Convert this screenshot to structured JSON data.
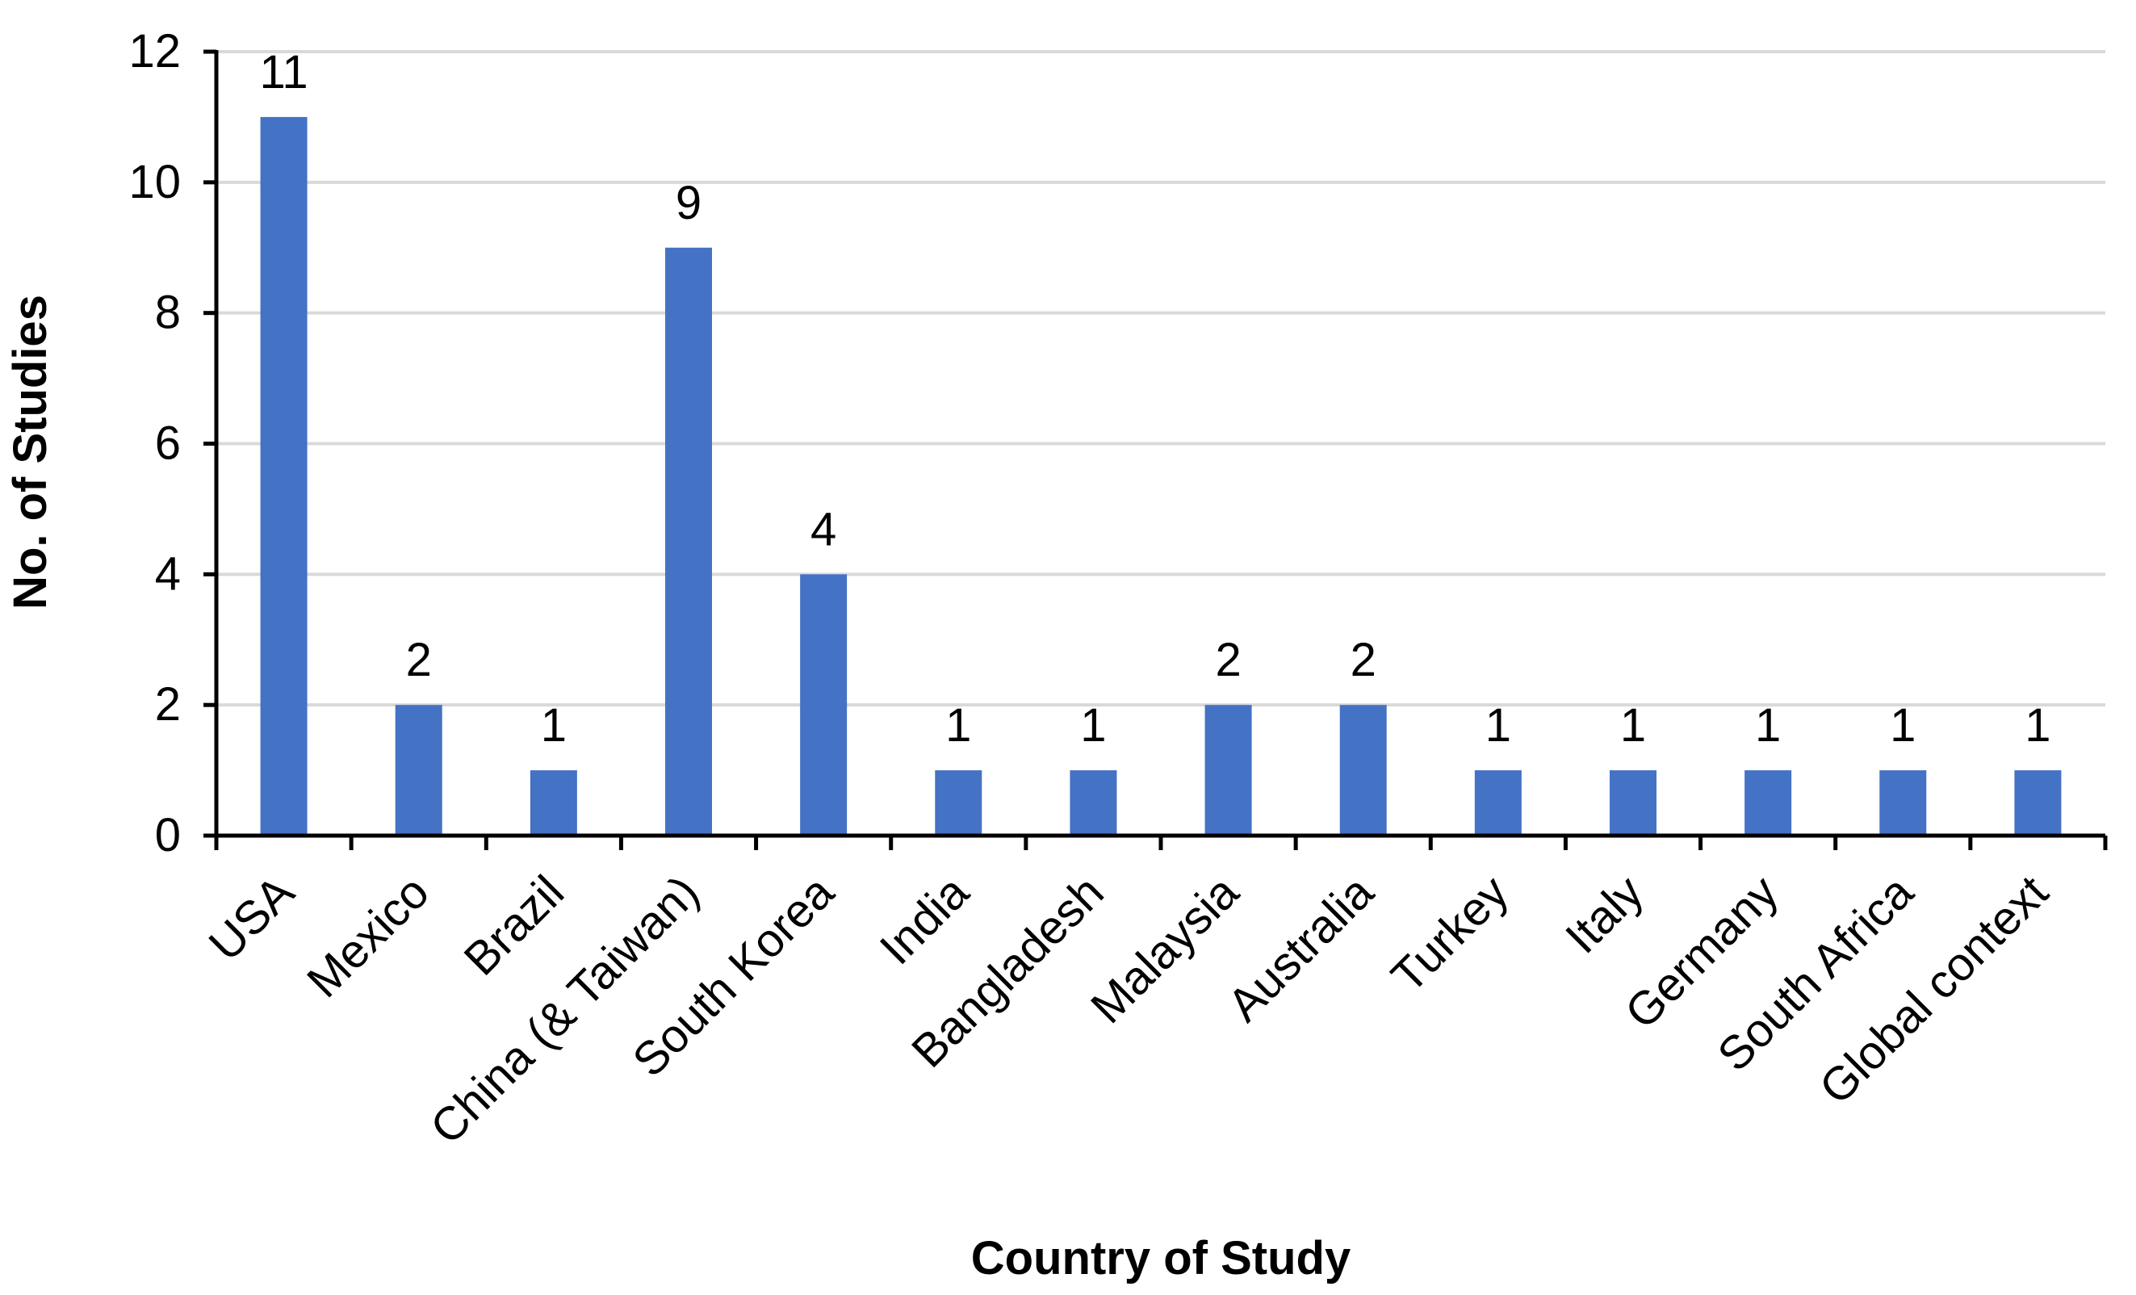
{
  "chart_data": {
    "type": "bar",
    "title": "",
    "xlabel": "Country of Study",
    "ylabel": "No. of Studies",
    "ylim": [
      0,
      12
    ],
    "yticks": [
      0,
      2,
      4,
      6,
      8,
      10,
      12
    ],
    "grid": true,
    "legend": "none",
    "categories": [
      "USA",
      "Mexico",
      "Brazil",
      "China (& Taiwan)",
      "South Korea",
      "India",
      "Bangladesh",
      "Malaysia",
      "Australia",
      "Turkey",
      "Italy",
      "Germany",
      "South Africa",
      "Global context"
    ],
    "values": [
      11,
      2,
      1,
      9,
      4,
      1,
      1,
      2,
      2,
      1,
      1,
      1,
      1,
      1
    ],
    "bar_color": "#4472C4",
    "grid_color": "#D9D9D9"
  }
}
